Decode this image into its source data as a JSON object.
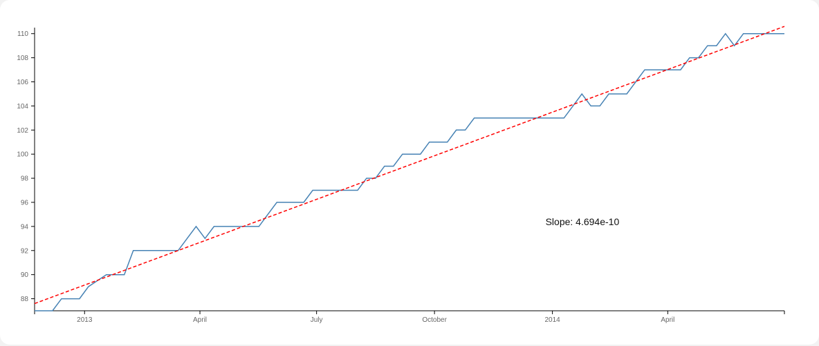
{
  "chart_data": {
    "type": "line",
    "title": "",
    "xlabel": "",
    "ylabel": "",
    "x_axis_type": "time",
    "xlim": [
      "2012-11-23",
      "2014-07-01"
    ],
    "ylim": [
      87,
      110.5
    ],
    "y_ticks": [
      88,
      90,
      92,
      94,
      96,
      98,
      100,
      102,
      104,
      106,
      108,
      110
    ],
    "x_ticks": [
      {
        "date": "2013-01-01",
        "label": "2013"
      },
      {
        "date": "2013-04-01",
        "label": "April"
      },
      {
        "date": "2013-07-01",
        "label": "July"
      },
      {
        "date": "2013-10-01",
        "label": "October"
      },
      {
        "date": "2014-01-01",
        "label": "2014"
      },
      {
        "date": "2014-04-01",
        "label": "April"
      }
    ],
    "grid": false,
    "series": [
      {
        "color": "#4682b4",
        "points": [
          [
            "2012-11-23",
            87
          ],
          [
            "2012-11-30",
            87
          ],
          [
            "2012-12-07",
            87
          ],
          [
            "2012-12-14",
            88
          ],
          [
            "2012-12-21",
            88
          ],
          [
            "2012-12-28",
            88
          ],
          [
            "2013-01-04",
            89
          ],
          [
            "2013-01-11",
            89.5
          ],
          [
            "2013-01-18",
            90
          ],
          [
            "2013-01-25",
            90
          ],
          [
            "2013-02-01",
            90
          ],
          [
            "2013-02-08",
            92
          ],
          [
            "2013-02-15",
            92
          ],
          [
            "2013-02-22",
            92
          ],
          [
            "2013-03-01",
            92
          ],
          [
            "2013-03-08",
            92
          ],
          [
            "2013-03-15",
            92
          ],
          [
            "2013-03-22",
            93
          ],
          [
            "2013-03-29",
            94
          ],
          [
            "2013-04-05",
            93
          ],
          [
            "2013-04-12",
            94
          ],
          [
            "2013-04-19",
            94
          ],
          [
            "2013-04-26",
            94
          ],
          [
            "2013-05-03",
            94
          ],
          [
            "2013-05-10",
            94
          ],
          [
            "2013-05-17",
            94
          ],
          [
            "2013-05-24",
            95
          ],
          [
            "2013-05-31",
            96
          ],
          [
            "2013-06-07",
            96
          ],
          [
            "2013-06-14",
            96
          ],
          [
            "2013-06-21",
            96
          ],
          [
            "2013-06-28",
            97
          ],
          [
            "2013-07-05",
            97
          ],
          [
            "2013-07-12",
            97
          ],
          [
            "2013-07-19",
            97
          ],
          [
            "2013-07-26",
            97
          ],
          [
            "2013-08-02",
            97
          ],
          [
            "2013-08-09",
            98
          ],
          [
            "2013-08-16",
            98
          ],
          [
            "2013-08-23",
            99
          ],
          [
            "2013-08-30",
            99
          ],
          [
            "2013-09-06",
            100
          ],
          [
            "2013-09-13",
            100
          ],
          [
            "2013-09-20",
            100
          ],
          [
            "2013-09-27",
            101
          ],
          [
            "2013-10-04",
            101
          ],
          [
            "2013-10-11",
            101
          ],
          [
            "2013-10-18",
            102
          ],
          [
            "2013-10-25",
            102
          ],
          [
            "2013-11-01",
            103
          ],
          [
            "2013-11-08",
            103
          ],
          [
            "2013-11-15",
            103
          ],
          [
            "2013-11-22",
            103
          ],
          [
            "2013-11-29",
            103
          ],
          [
            "2013-12-06",
            103
          ],
          [
            "2013-12-13",
            103
          ],
          [
            "2013-12-20",
            103
          ],
          [
            "2013-12-27",
            103
          ],
          [
            "2014-01-03",
            103
          ],
          [
            "2014-01-10",
            103
          ],
          [
            "2014-01-17",
            104
          ],
          [
            "2014-01-24",
            105
          ],
          [
            "2014-01-31",
            104
          ],
          [
            "2014-02-07",
            104
          ],
          [
            "2014-02-14",
            105
          ],
          [
            "2014-02-21",
            105
          ],
          [
            "2014-02-28",
            105
          ],
          [
            "2014-03-07",
            106
          ],
          [
            "2014-03-14",
            107
          ],
          [
            "2014-03-21",
            107
          ],
          [
            "2014-03-28",
            107
          ],
          [
            "2014-04-04",
            107
          ],
          [
            "2014-04-11",
            107
          ],
          [
            "2014-04-18",
            108
          ],
          [
            "2014-04-25",
            108
          ],
          [
            "2014-05-02",
            109
          ],
          [
            "2014-05-09",
            109
          ],
          [
            "2014-05-16",
            110
          ],
          [
            "2014-05-23",
            109
          ],
          [
            "2014-05-30",
            110
          ],
          [
            "2014-06-06",
            110
          ],
          [
            "2014-06-13",
            110
          ],
          [
            "2014-06-20",
            110
          ],
          [
            "2014-07-01",
            110
          ]
        ]
      }
    ],
    "trendline": {
      "color": "#ff0000",
      "style": "dashed",
      "points": [
        [
          "2012-11-23",
          87.6
        ],
        [
          "2014-07-01",
          110.6
        ]
      ]
    },
    "annotations": [
      {
        "text": "Slope: 4.694e-10",
        "x": "2014-01-01",
        "y": 94.1
      }
    ]
  }
}
